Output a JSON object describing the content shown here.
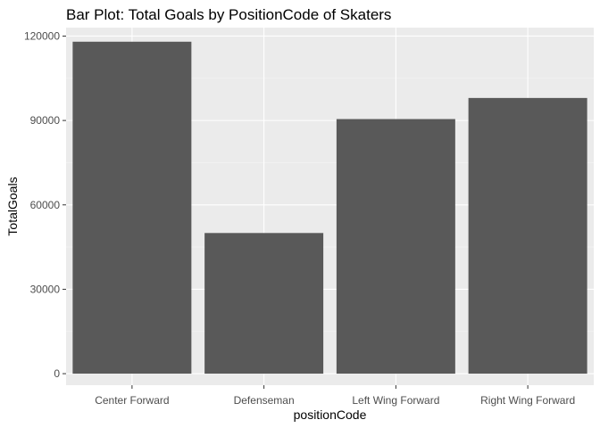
{
  "chart_data": {
    "type": "bar",
    "title": "Bar Plot: Total Goals by PositionCode of Skaters",
    "xlabel": "positionCode",
    "ylabel": "TotalGoals",
    "categories": [
      "Center Forward",
      "Defenseman",
      "Left Wing Forward",
      "Right Wing Forward"
    ],
    "values": [
      118000,
      50000,
      90500,
      98000
    ],
    "ylim": [
      -4100,
      123000
    ],
    "yticks": [
      0,
      30000,
      60000,
      90000,
      120000
    ],
    "ytick_labels": [
      "0",
      "30000",
      "60000",
      "90000",
      "120000"
    ],
    "grid": true,
    "legend": "none",
    "colors": {
      "bar": "#595959",
      "panel": "#ebebeb",
      "grid_major": "#ffffff",
      "grid_minor": "#f5f5f5",
      "tick": "#333333"
    }
  }
}
